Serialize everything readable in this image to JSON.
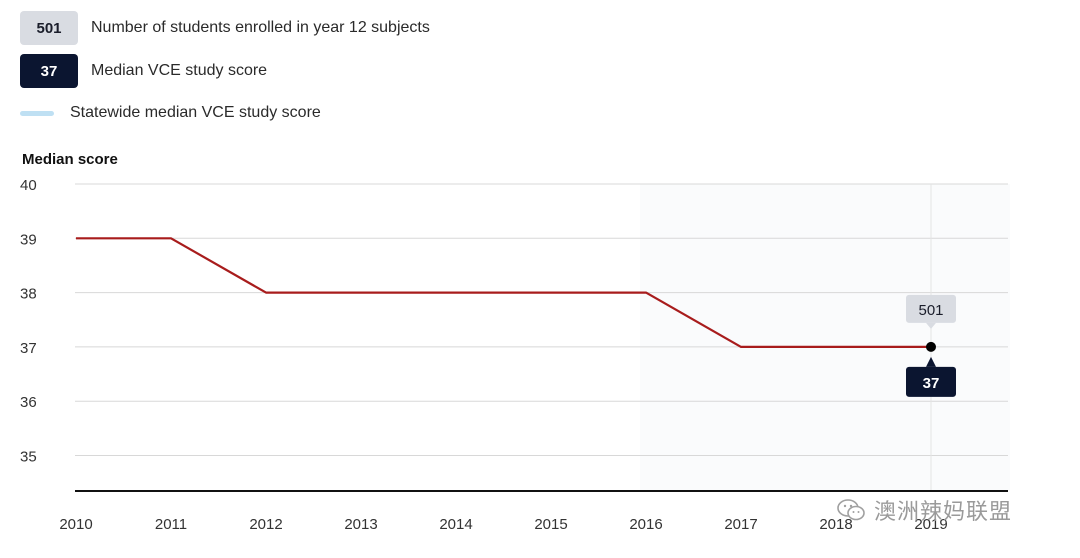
{
  "legend": {
    "enrolled": {
      "badge": "501",
      "label": "Number of students enrolled in year 12 subjects"
    },
    "median": {
      "badge": "37",
      "label": "Median VCE study score"
    },
    "statewide": {
      "label": "Statewide median VCE study score"
    }
  },
  "colors": {
    "line": "#a81c1c",
    "badge_light": "#d9dce2",
    "badge_dark": "#0b1530",
    "statewide": "#bfe0f3",
    "grid": "#d8d8d8"
  },
  "chart_data": {
    "type": "line",
    "ylabel": "Median score",
    "xlabel": "",
    "ylim": [
      34.33,
      40
    ],
    "yticks": [
      35,
      36,
      37,
      38,
      39,
      40
    ],
    "x": [
      "2010",
      "2011",
      "2012",
      "2013",
      "2014",
      "2015",
      "2016",
      "2017",
      "2018",
      "2019"
    ],
    "series": [
      {
        "name": "Median VCE study score",
        "values": [
          39,
          39,
          38,
          38,
          38,
          38,
          38,
          37,
          37,
          37
        ]
      }
    ],
    "highlight": {
      "x": "2019",
      "enrolled_label": "501",
      "score_label": "37"
    },
    "grid": true
  },
  "watermark": {
    "text": "澳洲辣妈联盟",
    "icon": "wechat-icon"
  }
}
